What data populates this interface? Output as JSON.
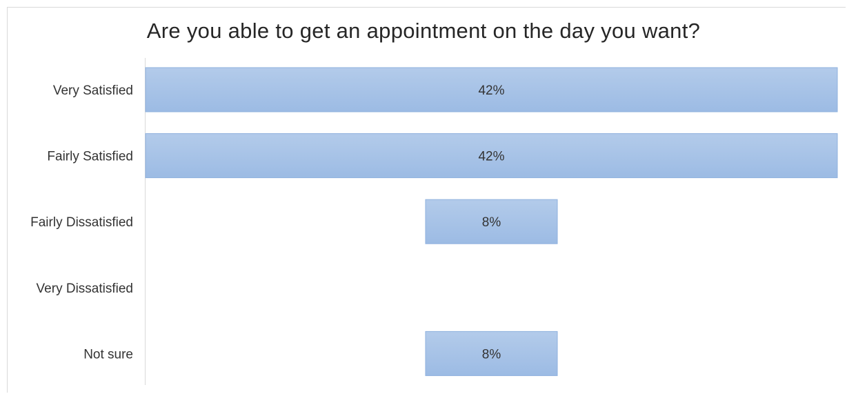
{
  "chart_data": {
    "type": "bar",
    "orientation": "horizontal",
    "title": "Are you able to get an appointment on the day you want?",
    "categories": [
      "Very Satisfied",
      "Fairly Satisfied",
      "Fairly Dissatisfied",
      "Very Dissatisfied",
      "Not sure"
    ],
    "values": [
      42,
      42,
      8,
      0,
      8
    ],
    "data_labels": [
      "42%",
      "42%",
      "8%",
      "",
      "8%"
    ],
    "unit": "%",
    "bar_alignment": "centered",
    "xlim": [
      -42,
      42
    ],
    "grid": false,
    "legend": "none",
    "colors": {
      "bar_fill": "#a9c4e8",
      "bar_stroke": "#8fb1de",
      "axis": "#d9d9d9",
      "text": "#333333"
    }
  }
}
